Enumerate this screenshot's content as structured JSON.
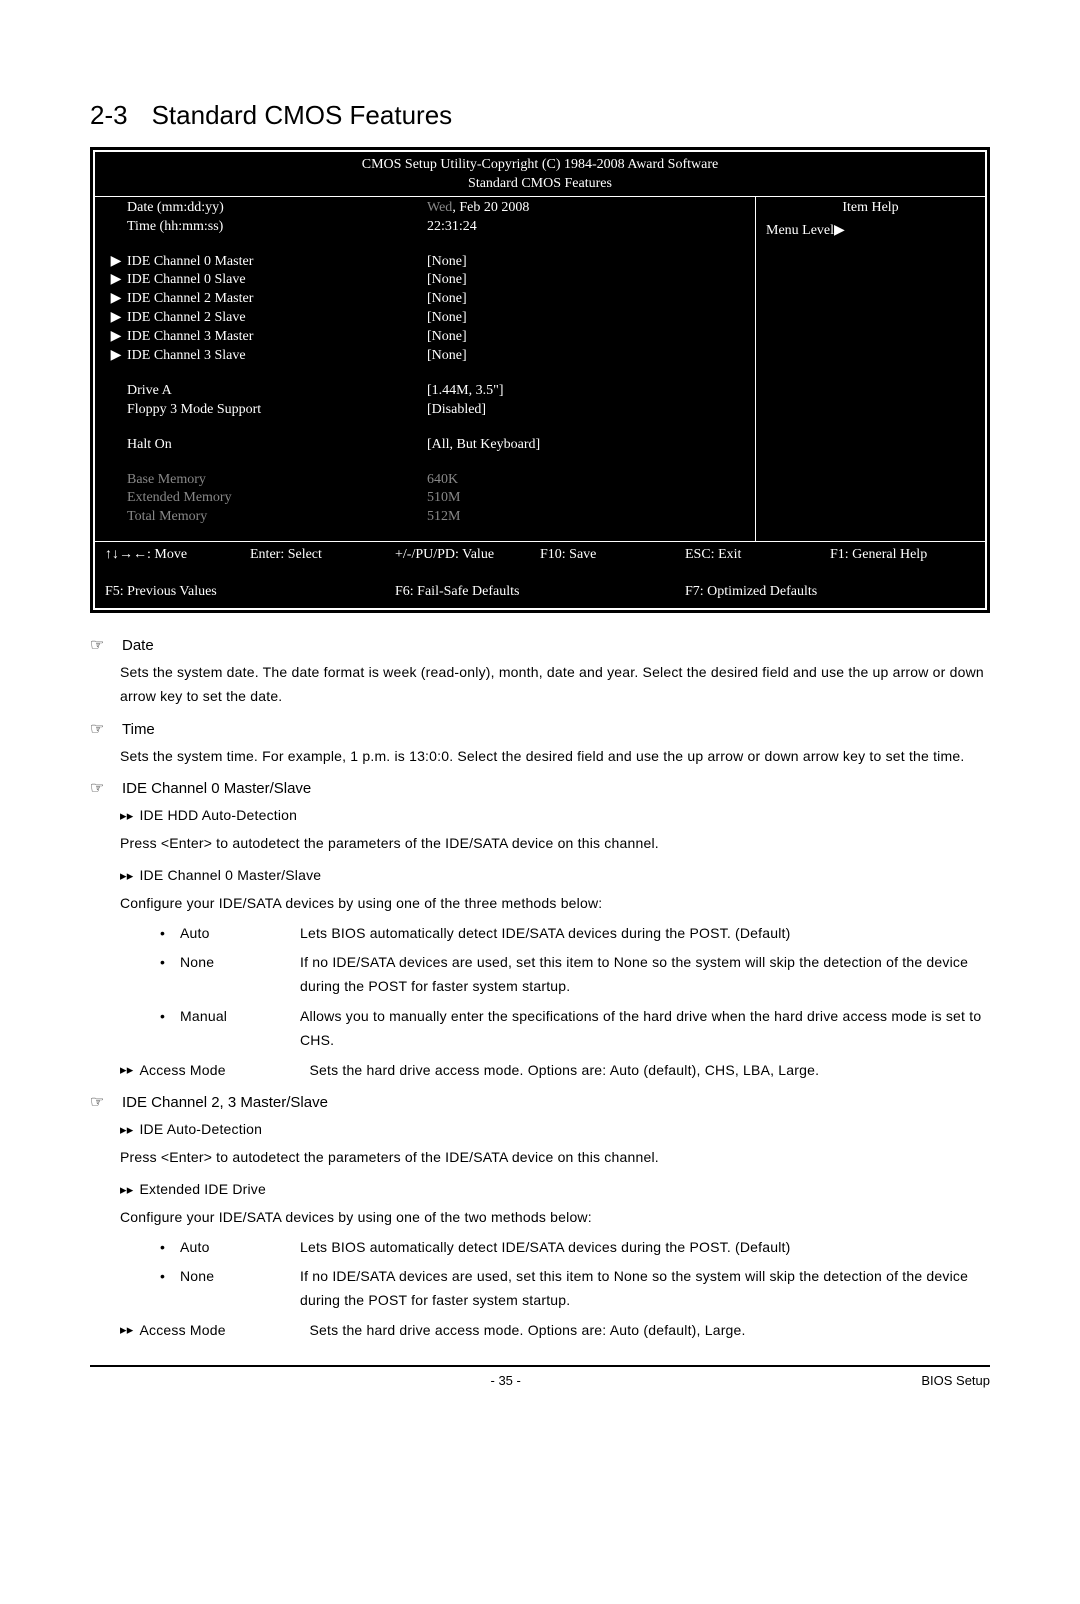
{
  "section": {
    "number": "2-3",
    "title": "Standard CMOS Features"
  },
  "bios": {
    "copyright": "CMOS Setup Utility-Copyright (C) 1984-2008 Award Software",
    "subtitle": "Standard CMOS Features",
    "rows_top": [
      {
        "arrow": "",
        "label": "Date (mm:dd:yy)",
        "value_dim": "Wed",
        "value": ", Feb  20  2008"
      },
      {
        "arrow": "",
        "label": "Time (hh:mm:ss)",
        "value": "22:31:24"
      }
    ],
    "rows_ide": [
      {
        "arrow": "▶",
        "label": "IDE Channel 0 Master",
        "value": "[None]"
      },
      {
        "arrow": "▶",
        "label": "IDE Channel 0 Slave",
        "value": "[None]"
      },
      {
        "arrow": "▶",
        "label": "IDE Channel 2 Master",
        "value": "[None]"
      },
      {
        "arrow": "▶",
        "label": "IDE Channel 2 Slave",
        "value": "[None]"
      },
      {
        "arrow": "▶",
        "label": "IDE Channel 3 Master",
        "value": "[None]"
      },
      {
        "arrow": "▶",
        "label": "IDE Channel 3 Slave",
        "value": "[None]"
      }
    ],
    "rows_drive": [
      {
        "arrow": "",
        "label": "Drive A",
        "value": "[1.44M, 3.5\"]"
      },
      {
        "arrow": "",
        "label": "Floppy 3 Mode Support",
        "value": "[Disabled]"
      }
    ],
    "rows_halt": [
      {
        "arrow": "",
        "label": "Halt On",
        "value": "[All, But Keyboard]"
      }
    ],
    "rows_mem": [
      {
        "arrow": "",
        "label": "Base Memory",
        "value": "640K",
        "dim": true
      },
      {
        "arrow": "",
        "label": "Extended Memory",
        "value": "510M",
        "dim": true
      },
      {
        "arrow": "",
        "label": "Total Memory",
        "value": "512M",
        "dim": true
      }
    ],
    "right": {
      "item_help": "Item Help",
      "menu_level": "Menu Level▶"
    },
    "footer": {
      "l1a": "↑↓→←: Move",
      "l1b": "Enter: Select",
      "l1c": "+/-/PU/PD: Value",
      "l1d": "F10: Save",
      "l1e": "ESC: Exit",
      "l1f": "F1: General Help",
      "l2a": "F5: Previous Values",
      "l2b": "F6: Fail-Safe Defaults",
      "l2c": "F7: Optimized Defaults"
    }
  },
  "desc": {
    "hand": "☞",
    "fwd": "▸▸",
    "bullet": "•",
    "items": [
      {
        "title": "Date",
        "body": "Sets the system date. The date format is week (read-only), month, date and year. Select the desired field and use the up arrow or down arrow key to set the date."
      },
      {
        "title": "Time",
        "body": "Sets the system time. For example, 1 p.m. is 13:0:0. Select the desired field and use the up arrow or down arrow key to set the time."
      }
    ],
    "ide0": {
      "title": "IDE Channel 0 Master/Slave",
      "sub1_title": "IDE HDD Auto-Detection",
      "sub1_body": "Press <Enter> to autodetect the parameters of the IDE/SATA device on this channel.",
      "sub2_title": "IDE Channel 0 Master/Slave",
      "sub2_body": "Configure your IDE/SATA devices by using one of the three methods below:",
      "bullets": [
        {
          "term": "Auto",
          "desc": "Lets BIOS automatically detect IDE/SATA devices during the POST. (Default)"
        },
        {
          "term": "None",
          "desc": "If no IDE/SATA devices are used, set this item to None so the system will skip the detection of the device during the POST for faster system startup."
        },
        {
          "term": "Manual",
          "desc": "Allows you to manually enter the specifications of the hard drive when the hard drive access mode is set to CHS."
        }
      ],
      "access_label": "Access Mode",
      "access_desc": "Sets the hard drive access mode. Options are: Auto (default), CHS, LBA, Large."
    },
    "ide23": {
      "title": "IDE Channel 2, 3 Master/Slave",
      "sub1_title": "IDE Auto-Detection",
      "sub1_body": "Press <Enter> to autodetect the parameters of the IDE/SATA device on this channel.",
      "sub2_title": "Extended IDE Drive",
      "sub2_body": "Configure your IDE/SATA devices by using one of the two methods below:",
      "bullets": [
        {
          "term": "Auto",
          "desc": "Lets BIOS automatically detect IDE/SATA devices during the POST. (Default)"
        },
        {
          "term": "None",
          "desc": "If no IDE/SATA devices are used, set this item to None so the system will skip the detection of the device during the POST for faster system startup."
        }
      ],
      "access_label": "Access Mode",
      "access_desc": "Sets the hard drive access mode. Options are: Auto (default), Large."
    }
  },
  "footer": {
    "page": "- 35 -",
    "section": "BIOS Setup"
  }
}
